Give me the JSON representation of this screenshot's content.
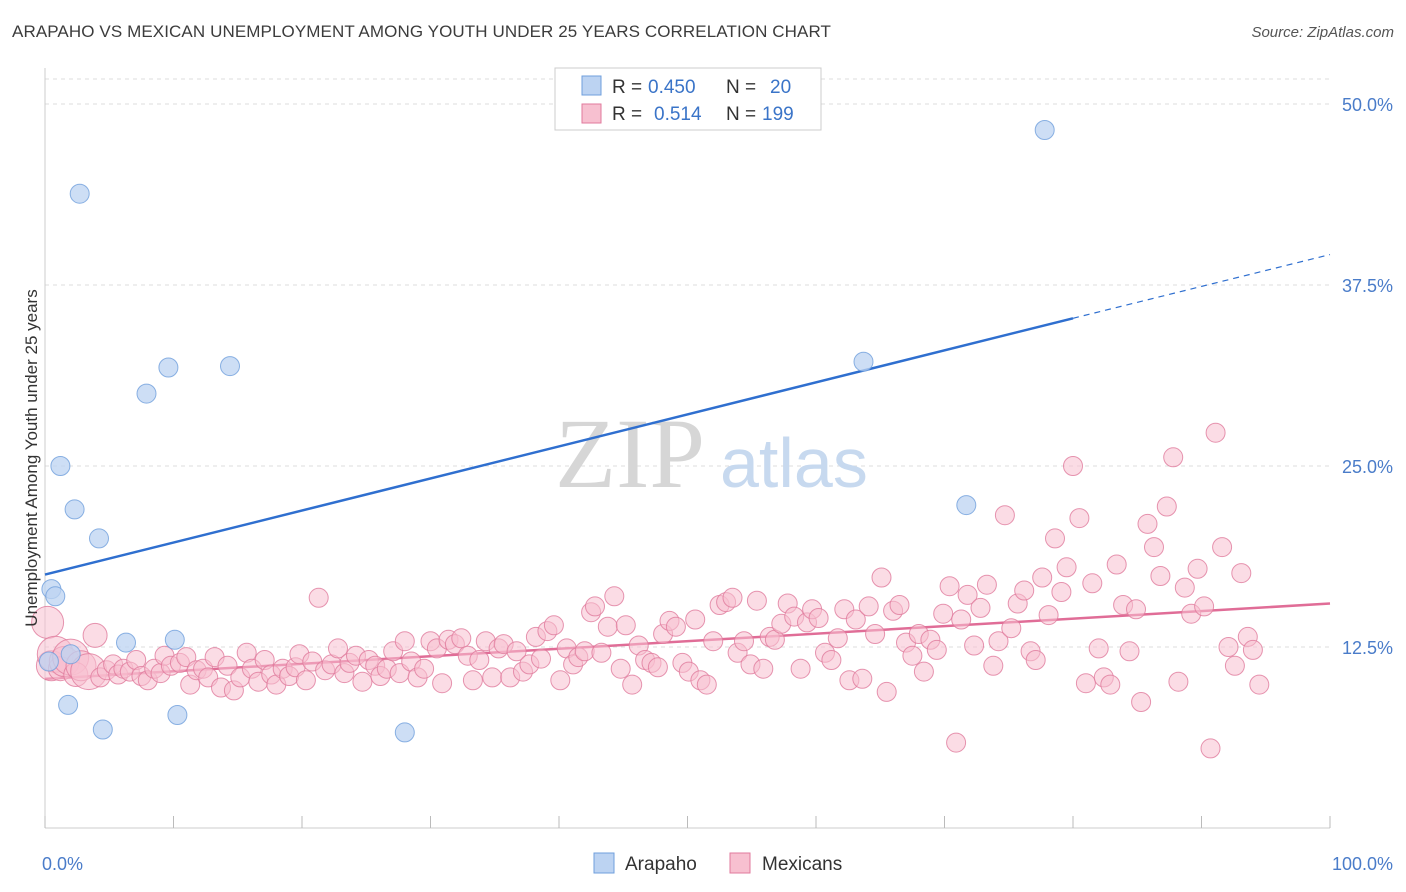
{
  "title": "ARAPAHO VS MEXICAN UNEMPLOYMENT AMONG YOUTH UNDER 25 YEARS CORRELATION CHART",
  "source": "Source: ZipAtlas.com",
  "watermark": {
    "zip": "ZIP",
    "atlas": "atlas"
  },
  "legend": {
    "r_label": "R =",
    "n_label": "N =",
    "rows": [
      {
        "r": "0.450",
        "n": "20"
      },
      {
        "r": "0.514",
        "n": "199"
      }
    ]
  },
  "chart_data": {
    "type": "scatter",
    "title": "ARAPAHO VS MEXICAN UNEMPLOYMENT AMONG YOUTH UNDER 25 YEARS CORRELATION CHART",
    "xlabel": "",
    "ylabel": "Unemployment Among Youth under 25 years",
    "xlim": [
      0,
      100
    ],
    "ylim": [
      0,
      52
    ],
    "x_tick_labels": [
      "0.0%",
      "100.0%"
    ],
    "y_ticks": [
      12.5,
      25.0,
      37.5,
      50.0
    ],
    "y_tick_labels": [
      "12.5%",
      "25.0%",
      "37.5%",
      "50.0%"
    ],
    "grid": "horizontal dashed",
    "legend_position": "top-center",
    "series": [
      {
        "name": "Arapaho",
        "color": "#6f9fdc",
        "fill": "#bcd3f2",
        "r": 0.45,
        "n": 20,
        "trend": {
          "x0": 0,
          "y0": 17.5,
          "x1": 80,
          "y1": 35.2,
          "dash_to_x": 100,
          "dash_to_y": 39.6
        },
        "points": [
          [
            0.3,
            11.5
          ],
          [
            0.5,
            16.5
          ],
          [
            0.8,
            16.0
          ],
          [
            1.2,
            25.0
          ],
          [
            1.8,
            8.5
          ],
          [
            2.3,
            22.0
          ],
          [
            2.7,
            43.8
          ],
          [
            4.2,
            20.0
          ],
          [
            4.5,
            6.8
          ],
          [
            6.3,
            12.8
          ],
          [
            7.9,
            30.0
          ],
          [
            9.6,
            31.8
          ],
          [
            10.1,
            13.0
          ],
          [
            10.3,
            7.8
          ],
          [
            14.4,
            31.9
          ],
          [
            28.0,
            6.6
          ],
          [
            63.7,
            32.2
          ],
          [
            71.7,
            22.3
          ],
          [
            77.8,
            48.2
          ],
          [
            2.0,
            12.0
          ]
        ]
      },
      {
        "name": "Mexicans",
        "color": "#e07a9c",
        "fill": "#f7c0d0",
        "r": 0.514,
        "n": 199,
        "trend": {
          "x0": 0,
          "y0": 10.3,
          "x1": 100,
          "y1": 15.5
        },
        "points": [
          [
            0.2,
            14.2
          ],
          [
            0.5,
            11.2
          ],
          [
            0.8,
            12.0
          ],
          [
            1.2,
            11.0
          ],
          [
            1.5,
            11.5
          ],
          [
            2.0,
            11.8
          ],
          [
            2.4,
            10.6
          ],
          [
            2.8,
            11.2
          ],
          [
            3.4,
            10.8
          ],
          [
            3.9,
            13.3
          ],
          [
            4.3,
            10.4
          ],
          [
            4.8,
            10.9
          ],
          [
            5.3,
            11.3
          ],
          [
            5.7,
            10.6
          ],
          [
            6.1,
            11.0
          ],
          [
            6.6,
            10.8
          ],
          [
            7.1,
            11.6
          ],
          [
            7.5,
            10.5
          ],
          [
            8.0,
            10.2
          ],
          [
            8.5,
            11.0
          ],
          [
            9.0,
            10.7
          ],
          [
            9.3,
            11.9
          ],
          [
            9.8,
            11.2
          ],
          [
            10.5,
            11.4
          ],
          [
            11.0,
            11.8
          ],
          [
            11.3,
            9.9
          ],
          [
            11.8,
            10.9
          ],
          [
            12.3,
            11.0
          ],
          [
            12.7,
            10.4
          ],
          [
            13.2,
            11.8
          ],
          [
            13.7,
            9.7
          ],
          [
            14.2,
            11.2
          ],
          [
            14.7,
            9.5
          ],
          [
            15.2,
            10.4
          ],
          [
            15.7,
            12.1
          ],
          [
            16.1,
            11.0
          ],
          [
            16.6,
            10.1
          ],
          [
            17.1,
            11.6
          ],
          [
            17.6,
            10.6
          ],
          [
            18.0,
            9.9
          ],
          [
            18.5,
            11.0
          ],
          [
            19.0,
            10.5
          ],
          [
            19.5,
            11.1
          ],
          [
            19.8,
            12.0
          ],
          [
            20.3,
            10.2
          ],
          [
            20.8,
            11.5
          ],
          [
            21.3,
            15.9
          ],
          [
            21.8,
            10.9
          ],
          [
            22.3,
            11.3
          ],
          [
            22.8,
            12.4
          ],
          [
            23.3,
            10.7
          ],
          [
            23.7,
            11.4
          ],
          [
            24.2,
            11.9
          ],
          [
            24.7,
            10.1
          ],
          [
            25.2,
            11.6
          ],
          [
            25.7,
            11.2
          ],
          [
            26.1,
            10.5
          ],
          [
            26.6,
            11.0
          ],
          [
            27.1,
            12.2
          ],
          [
            27.6,
            10.7
          ],
          [
            28.0,
            12.9
          ],
          [
            28.5,
            11.5
          ],
          [
            29.0,
            10.4
          ],
          [
            29.5,
            11.0
          ],
          [
            30.0,
            12.9
          ],
          [
            30.5,
            12.4
          ],
          [
            30.9,
            10.0
          ],
          [
            31.4,
            13.0
          ],
          [
            31.9,
            12.7
          ],
          [
            32.4,
            13.1
          ],
          [
            32.9,
            11.9
          ],
          [
            33.3,
            10.2
          ],
          [
            33.8,
            11.6
          ],
          [
            34.3,
            12.9
          ],
          [
            34.8,
            10.4
          ],
          [
            35.3,
            12.4
          ],
          [
            35.7,
            12.7
          ],
          [
            36.2,
            10.4
          ],
          [
            36.7,
            12.2
          ],
          [
            37.2,
            10.8
          ],
          [
            37.7,
            11.3
          ],
          [
            38.2,
            13.2
          ],
          [
            38.6,
            11.7
          ],
          [
            39.1,
            13.6
          ],
          [
            39.6,
            14.0
          ],
          [
            40.1,
            10.2
          ],
          [
            40.6,
            12.4
          ],
          [
            41.1,
            11.3
          ],
          [
            41.5,
            11.8
          ],
          [
            42.0,
            12.2
          ],
          [
            42.5,
            14.9
          ],
          [
            42.8,
            15.3
          ],
          [
            43.3,
            12.1
          ],
          [
            43.8,
            13.9
          ],
          [
            44.3,
            16.0
          ],
          [
            44.8,
            11.0
          ],
          [
            45.2,
            14.0
          ],
          [
            45.7,
            9.9
          ],
          [
            46.2,
            12.6
          ],
          [
            46.7,
            11.6
          ],
          [
            47.2,
            11.4
          ],
          [
            47.7,
            11.1
          ],
          [
            48.1,
            13.4
          ],
          [
            48.6,
            14.3
          ],
          [
            49.1,
            13.9
          ],
          [
            49.6,
            11.4
          ],
          [
            50.1,
            10.8
          ],
          [
            50.6,
            14.4
          ],
          [
            51.0,
            10.2
          ],
          [
            51.5,
            9.9
          ],
          [
            52.0,
            12.9
          ],
          [
            52.5,
            15.4
          ],
          [
            53.0,
            15.6
          ],
          [
            53.5,
            15.9
          ],
          [
            53.9,
            12.1
          ],
          [
            54.4,
            12.9
          ],
          [
            54.9,
            11.3
          ],
          [
            55.4,
            15.7
          ],
          [
            55.9,
            11.0
          ],
          [
            56.4,
            13.2
          ],
          [
            56.8,
            13.0
          ],
          [
            57.3,
            14.1
          ],
          [
            57.8,
            15.5
          ],
          [
            58.3,
            14.6
          ],
          [
            58.8,
            11.0
          ],
          [
            59.3,
            14.2
          ],
          [
            59.7,
            15.1
          ],
          [
            60.2,
            14.5
          ],
          [
            60.7,
            12.1
          ],
          [
            61.2,
            11.6
          ],
          [
            61.7,
            13.1
          ],
          [
            62.2,
            15.1
          ],
          [
            62.6,
            10.2
          ],
          [
            63.1,
            14.4
          ],
          [
            63.6,
            10.3
          ],
          [
            64.1,
            15.3
          ],
          [
            64.6,
            13.4
          ],
          [
            65.1,
            17.3
          ],
          [
            65.5,
            9.4
          ],
          [
            66.0,
            15.0
          ],
          [
            66.5,
            15.4
          ],
          [
            67.0,
            12.8
          ],
          [
            67.5,
            11.9
          ],
          [
            68.0,
            13.4
          ],
          [
            68.4,
            10.8
          ],
          [
            68.9,
            13.0
          ],
          [
            69.4,
            12.3
          ],
          [
            69.9,
            14.8
          ],
          [
            70.4,
            16.7
          ],
          [
            70.9,
            5.9
          ],
          [
            71.3,
            14.4
          ],
          [
            71.8,
            16.1
          ],
          [
            72.3,
            12.6
          ],
          [
            72.8,
            15.2
          ],
          [
            73.3,
            16.8
          ],
          [
            73.8,
            11.2
          ],
          [
            74.2,
            12.9
          ],
          [
            74.7,
            21.6
          ],
          [
            75.2,
            13.8
          ],
          [
            75.7,
            15.5
          ],
          [
            76.2,
            16.4
          ],
          [
            76.7,
            12.2
          ],
          [
            77.1,
            11.6
          ],
          [
            77.6,
            17.3
          ],
          [
            78.1,
            14.7
          ],
          [
            78.6,
            20.0
          ],
          [
            79.1,
            16.3
          ],
          [
            79.5,
            18.0
          ],
          [
            80.0,
            25.0
          ],
          [
            80.5,
            21.4
          ],
          [
            81.0,
            10.0
          ],
          [
            81.5,
            16.9
          ],
          [
            82.0,
            12.4
          ],
          [
            82.4,
            10.4
          ],
          [
            82.9,
            9.9
          ],
          [
            83.4,
            18.2
          ],
          [
            83.9,
            15.4
          ],
          [
            84.4,
            12.2
          ],
          [
            84.9,
            15.1
          ],
          [
            85.3,
            8.7
          ],
          [
            85.8,
            21.0
          ],
          [
            86.3,
            19.4
          ],
          [
            86.8,
            17.4
          ],
          [
            87.3,
            22.2
          ],
          [
            87.8,
            25.6
          ],
          [
            88.2,
            10.1
          ],
          [
            88.7,
            16.6
          ],
          [
            89.2,
            14.8
          ],
          [
            89.7,
            17.9
          ],
          [
            90.2,
            15.3
          ],
          [
            90.7,
            5.5
          ],
          [
            91.1,
            27.3
          ],
          [
            91.6,
            19.4
          ],
          [
            92.1,
            12.5
          ],
          [
            92.6,
            11.2
          ],
          [
            93.1,
            17.6
          ],
          [
            93.6,
            13.2
          ],
          [
            94.0,
            12.3
          ],
          [
            94.5,
            9.9
          ]
        ]
      }
    ]
  }
}
